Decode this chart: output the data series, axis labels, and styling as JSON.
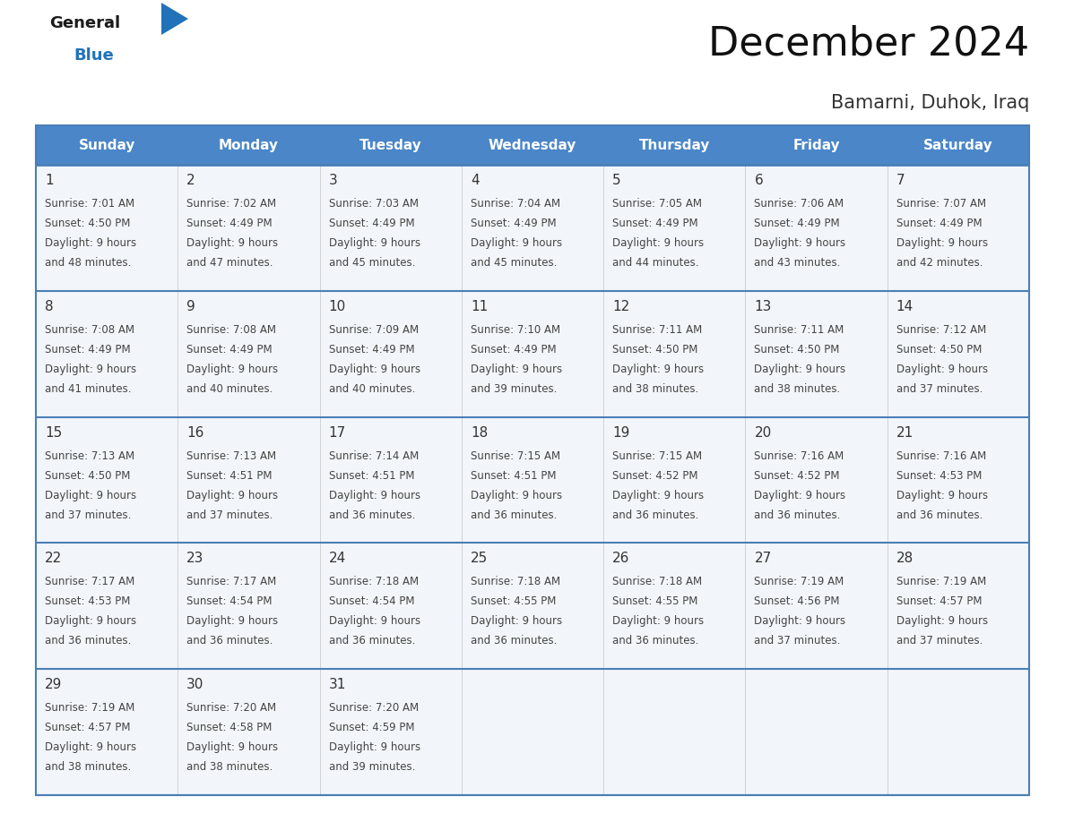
{
  "title": "December 2024",
  "subtitle": "Bamarni, Duhok, Iraq",
  "days_of_week": [
    "Sunday",
    "Monday",
    "Tuesday",
    "Wednesday",
    "Thursday",
    "Friday",
    "Saturday"
  ],
  "header_bg": "#4a86c8",
  "header_text": "#ffffff",
  "row_divider_color": "#4a7fb5",
  "cell_bg": "#f2f6fb",
  "text_color": "#444444",
  "day_number_color": "#333333",
  "calendar_data": [
    [
      {
        "day": 1,
        "sunrise": "7:01 AM",
        "sunset": "4:50 PM",
        "daylight": "9 hours and 48 minutes."
      },
      {
        "day": 2,
        "sunrise": "7:02 AM",
        "sunset": "4:49 PM",
        "daylight": "9 hours and 47 minutes."
      },
      {
        "day": 3,
        "sunrise": "7:03 AM",
        "sunset": "4:49 PM",
        "daylight": "9 hours and 45 minutes."
      },
      {
        "day": 4,
        "sunrise": "7:04 AM",
        "sunset": "4:49 PM",
        "daylight": "9 hours and 45 minutes."
      },
      {
        "day": 5,
        "sunrise": "7:05 AM",
        "sunset": "4:49 PM",
        "daylight": "9 hours and 44 minutes."
      },
      {
        "day": 6,
        "sunrise": "7:06 AM",
        "sunset": "4:49 PM",
        "daylight": "9 hours and 43 minutes."
      },
      {
        "day": 7,
        "sunrise": "7:07 AM",
        "sunset": "4:49 PM",
        "daylight": "9 hours and 42 minutes."
      }
    ],
    [
      {
        "day": 8,
        "sunrise": "7:08 AM",
        "sunset": "4:49 PM",
        "daylight": "9 hours and 41 minutes."
      },
      {
        "day": 9,
        "sunrise": "7:08 AM",
        "sunset": "4:49 PM",
        "daylight": "9 hours and 40 minutes."
      },
      {
        "day": 10,
        "sunrise": "7:09 AM",
        "sunset": "4:49 PM",
        "daylight": "9 hours and 40 minutes."
      },
      {
        "day": 11,
        "sunrise": "7:10 AM",
        "sunset": "4:49 PM",
        "daylight": "9 hours and 39 minutes."
      },
      {
        "day": 12,
        "sunrise": "7:11 AM",
        "sunset": "4:50 PM",
        "daylight": "9 hours and 38 minutes."
      },
      {
        "day": 13,
        "sunrise": "7:11 AM",
        "sunset": "4:50 PM",
        "daylight": "9 hours and 38 minutes."
      },
      {
        "day": 14,
        "sunrise": "7:12 AM",
        "sunset": "4:50 PM",
        "daylight": "9 hours and 37 minutes."
      }
    ],
    [
      {
        "day": 15,
        "sunrise": "7:13 AM",
        "sunset": "4:50 PM",
        "daylight": "9 hours and 37 minutes."
      },
      {
        "day": 16,
        "sunrise": "7:13 AM",
        "sunset": "4:51 PM",
        "daylight": "9 hours and 37 minutes."
      },
      {
        "day": 17,
        "sunrise": "7:14 AM",
        "sunset": "4:51 PM",
        "daylight": "9 hours and 36 minutes."
      },
      {
        "day": 18,
        "sunrise": "7:15 AM",
        "sunset": "4:51 PM",
        "daylight": "9 hours and 36 minutes."
      },
      {
        "day": 19,
        "sunrise": "7:15 AM",
        "sunset": "4:52 PM",
        "daylight": "9 hours and 36 minutes."
      },
      {
        "day": 20,
        "sunrise": "7:16 AM",
        "sunset": "4:52 PM",
        "daylight": "9 hours and 36 minutes."
      },
      {
        "day": 21,
        "sunrise": "7:16 AM",
        "sunset": "4:53 PM",
        "daylight": "9 hours and 36 minutes."
      }
    ],
    [
      {
        "day": 22,
        "sunrise": "7:17 AM",
        "sunset": "4:53 PM",
        "daylight": "9 hours and 36 minutes."
      },
      {
        "day": 23,
        "sunrise": "7:17 AM",
        "sunset": "4:54 PM",
        "daylight": "9 hours and 36 minutes."
      },
      {
        "day": 24,
        "sunrise": "7:18 AM",
        "sunset": "4:54 PM",
        "daylight": "9 hours and 36 minutes."
      },
      {
        "day": 25,
        "sunrise": "7:18 AM",
        "sunset": "4:55 PM",
        "daylight": "9 hours and 36 minutes."
      },
      {
        "day": 26,
        "sunrise": "7:18 AM",
        "sunset": "4:55 PM",
        "daylight": "9 hours and 36 minutes."
      },
      {
        "day": 27,
        "sunrise": "7:19 AM",
        "sunset": "4:56 PM",
        "daylight": "9 hours and 37 minutes."
      },
      {
        "day": 28,
        "sunrise": "7:19 AM",
        "sunset": "4:57 PM",
        "daylight": "9 hours and 37 minutes."
      }
    ],
    [
      {
        "day": 29,
        "sunrise": "7:19 AM",
        "sunset": "4:57 PM",
        "daylight": "9 hours and 38 minutes."
      },
      {
        "day": 30,
        "sunrise": "7:20 AM",
        "sunset": "4:58 PM",
        "daylight": "9 hours and 38 minutes."
      },
      {
        "day": 31,
        "sunrise": "7:20 AM",
        "sunset": "4:59 PM",
        "daylight": "9 hours and 39 minutes."
      },
      null,
      null,
      null,
      null
    ]
  ],
  "logo_text_general": "General",
  "logo_text_blue": "Blue",
  "logo_color_general": "#1a1a1a",
  "logo_color_blue": "#2272b9",
  "logo_triangle_color": "#2272b9",
  "title_fontsize": 32,
  "subtitle_fontsize": 15,
  "header_fontsize": 11,
  "day_num_fontsize": 11,
  "cell_text_fontsize": 8.5
}
